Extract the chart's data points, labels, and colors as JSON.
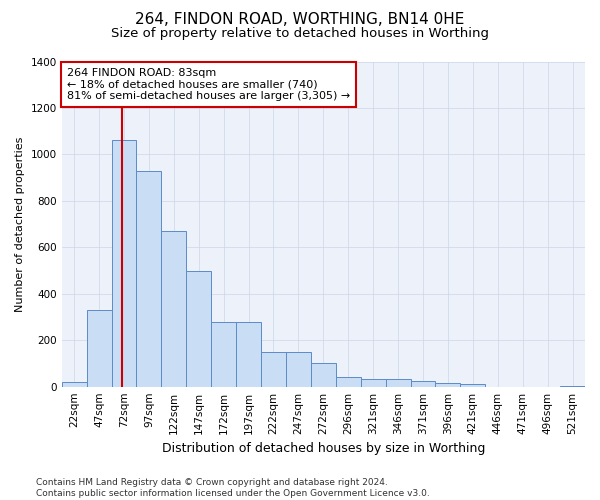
{
  "title1": "264, FINDON ROAD, WORTHING, BN14 0HE",
  "title2": "Size of property relative to detached houses in Worthing",
  "xlabel": "Distribution of detached houses by size in Worthing",
  "ylabel": "Number of detached properties",
  "bar_color": "#c9ddf5",
  "bar_edge_color": "#5b8bc9",
  "categories": [
    "22sqm",
    "47sqm",
    "72sqm",
    "97sqm",
    "122sqm",
    "147sqm",
    "172sqm",
    "197sqm",
    "222sqm",
    "247sqm",
    "272sqm",
    "296sqm",
    "321sqm",
    "346sqm",
    "371sqm",
    "396sqm",
    "421sqm",
    "446sqm",
    "471sqm",
    "496sqm",
    "521sqm"
  ],
  "values": [
    20,
    330,
    1060,
    930,
    670,
    500,
    280,
    280,
    150,
    150,
    100,
    40,
    35,
    35,
    25,
    15,
    10,
    0,
    0,
    0,
    5
  ],
  "vline_x": 2.17,
  "vline_color": "#cc0000",
  "annotation_text": "264 FINDON ROAD: 83sqm\n← 18% of detached houses are smaller (740)\n81% of semi-detached houses are larger (3,305) →",
  "annotation_box_color": "#ffffff",
  "annotation_box_edge": "#cc0000",
  "ylim": [
    0,
    1400
  ],
  "yticks": [
    0,
    200,
    400,
    600,
    800,
    1000,
    1200,
    1400
  ],
  "grid_color": "#cdd5e8",
  "background_color": "#edf1f9",
  "footer": "Contains HM Land Registry data © Crown copyright and database right 2024.\nContains public sector information licensed under the Open Government Licence v3.0.",
  "title1_fontsize": 11,
  "title2_fontsize": 9.5,
  "xlabel_fontsize": 9,
  "ylabel_fontsize": 8,
  "tick_fontsize": 7.5,
  "annotation_fontsize": 8,
  "footer_fontsize": 6.5
}
